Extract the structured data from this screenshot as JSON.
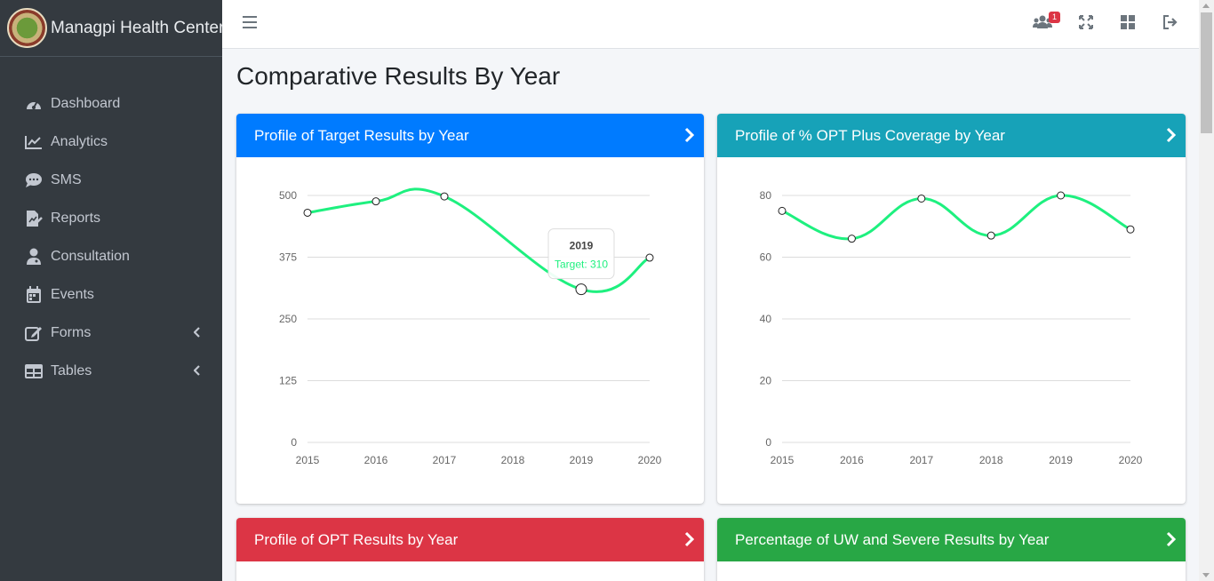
{
  "brand": {
    "name": "Managpi Health Center"
  },
  "sidebar": {
    "items": [
      {
        "label": "Dashboard",
        "icon": "tachometer-icon"
      },
      {
        "label": "Analytics",
        "icon": "line-chart-icon"
      },
      {
        "label": "SMS",
        "icon": "sms-icon"
      },
      {
        "label": "Reports",
        "icon": "report-icon"
      },
      {
        "label": "Consultation",
        "icon": "doctor-icon"
      },
      {
        "label": "Events",
        "icon": "calendar-icon"
      },
      {
        "label": "Forms",
        "icon": "edit-icon",
        "has_submenu": true
      },
      {
        "label": "Tables",
        "icon": "table-icon",
        "has_submenu": true
      }
    ]
  },
  "topbar": {
    "notification_count": "1"
  },
  "page": {
    "title": "Comparative Results By Year"
  },
  "cards": [
    {
      "title": "Profile of Target Results by Year",
      "color": "#007bff"
    },
    {
      "title": "Profile of % OPT Plus Coverage by Year",
      "color": "#17a2b8"
    },
    {
      "title": "Profile of OPT Results by Year",
      "color": "#dc3545"
    },
    {
      "title": "Percentage of UW and Severe Results by Year",
      "color": "#28a745"
    }
  ],
  "chart_data": [
    {
      "type": "line",
      "categories": [
        "2015",
        "2016",
        "2017",
        "2018",
        "2019",
        "2020"
      ],
      "series": [
        {
          "name": "Target",
          "values": [
            465,
            488,
            498,
            null,
            310,
            374
          ],
          "color": "#1ef07f"
        }
      ],
      "yticks": [
        "0",
        "125",
        "250",
        "375",
        "500"
      ],
      "ylim": [
        0,
        500
      ],
      "grid": true,
      "tooltip": {
        "title": "2019",
        "text": "Target: 310"
      }
    },
    {
      "type": "line",
      "categories": [
        "2015",
        "2016",
        "2017",
        "2018",
        "2019",
        "2020"
      ],
      "series": [
        {
          "values": [
            75,
            66,
            79,
            67,
            80,
            69
          ],
          "color": "#1ef07f"
        }
      ],
      "yticks": [
        "0",
        "20",
        "40",
        "60",
        "80"
      ],
      "ylim": [
        0,
        80
      ],
      "grid": true
    }
  ]
}
